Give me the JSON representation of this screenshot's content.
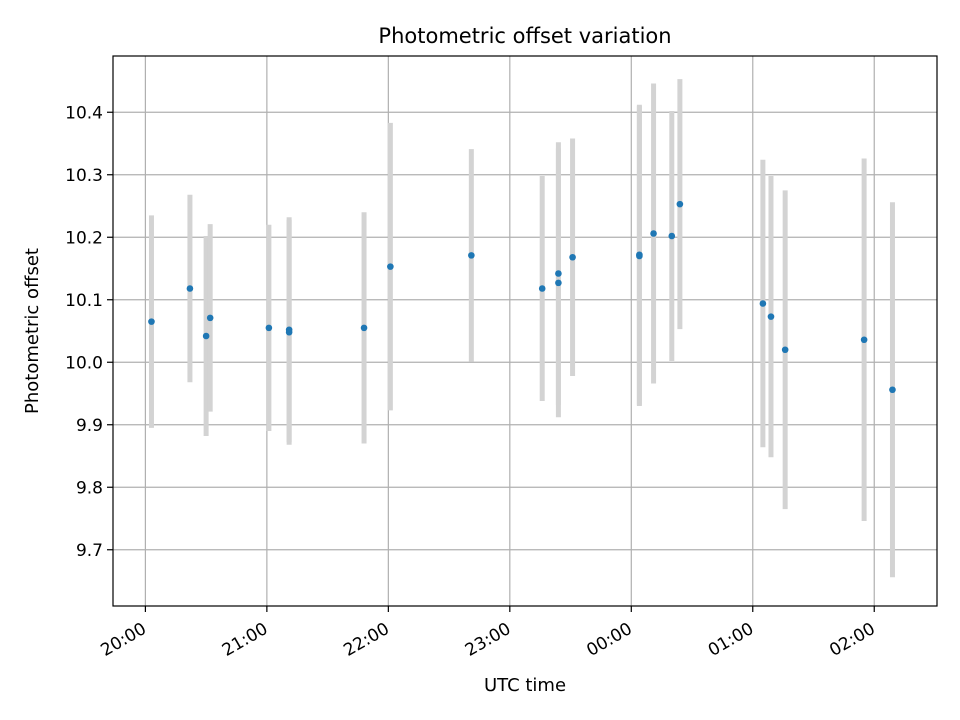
{
  "chart_data": {
    "type": "scatter",
    "title": "Photometric offset variation",
    "xlabel": "UTC time",
    "ylabel": "Photometric offset",
    "x_is_time": true,
    "x_ticks": [
      "20:00",
      "21:00",
      "22:00",
      "23:00",
      "00:00",
      "01:00",
      "02:00"
    ],
    "y_ticks": [
      "9.7",
      "9.8",
      "9.9",
      "10.0",
      "10.1",
      "10.2",
      "10.3",
      "10.4"
    ],
    "xlim": [
      "19:44",
      "26:31"
    ],
    "ylim": [
      9.61,
      10.49
    ],
    "grid": true,
    "colors": {
      "point": "#1f77b4",
      "errorbar": "#d3d3d3",
      "grid": "#b0b0b0"
    },
    "series": [
      {
        "points": [
          {
            "t": "20:03",
            "y": 10.065,
            "err": 0.17
          },
          {
            "t": "20:22",
            "y": 10.118,
            "err": 0.15
          },
          {
            "t": "20:30",
            "y": 10.042,
            "err": 0.16
          },
          {
            "t": "20:32",
            "y": 10.071,
            "err": 0.15
          },
          {
            "t": "21:01",
            "y": 10.055,
            "err": 0.165
          },
          {
            "t": "21:11",
            "y": 10.052,
            "err": 0.18
          },
          {
            "t": "21:11",
            "y": 10.048,
            "err": 0.18
          },
          {
            "t": "21:48",
            "y": 10.055,
            "err": 0.185
          },
          {
            "t": "22:01",
            "y": 10.153,
            "err": 0.23
          },
          {
            "t": "22:41",
            "y": 10.171,
            "err": 0.17
          },
          {
            "t": "23:16",
            "y": 10.118,
            "err": 0.18
          },
          {
            "t": "23:24",
            "y": 10.142,
            "err": 0.21
          },
          {
            "t": "23:24",
            "y": 10.127,
            "err": 0.215
          },
          {
            "t": "23:31",
            "y": 10.168,
            "err": 0.19
          },
          {
            "t": "24:04",
            "y": 10.17,
            "err": 0.24
          },
          {
            "t": "24:04",
            "y": 10.172,
            "err": 0.24
          },
          {
            "t": "24:11",
            "y": 10.206,
            "err": 0.24
          },
          {
            "t": "24:20",
            "y": 10.202,
            "err": 0.2
          },
          {
            "t": "24:24",
            "y": 10.253,
            "err": 0.2
          },
          {
            "t": "25:05",
            "y": 10.094,
            "err": 0.23
          },
          {
            "t": "25:09",
            "y": 10.073,
            "err": 0.225
          },
          {
            "t": "25:16",
            "y": 10.02,
            "err": 0.255
          },
          {
            "t": "25:55",
            "y": 10.036,
            "err": 0.29
          },
          {
            "t": "26:09",
            "y": 9.956,
            "err": 0.3
          }
        ]
      }
    ]
  }
}
